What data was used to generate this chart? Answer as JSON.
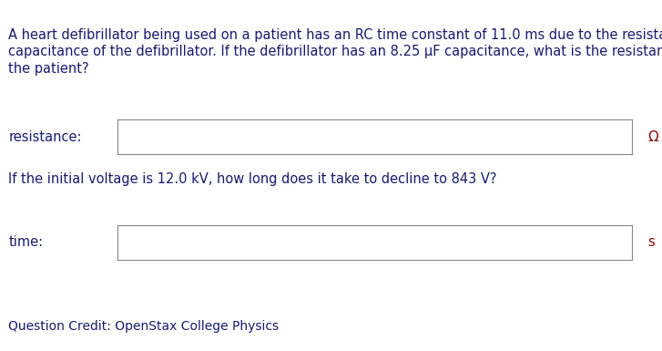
{
  "bg_color": "#ffffff",
  "text_color": "#1a1a6e",
  "unit_color": "#8b0000",
  "paragraph_line1": "A heart defibrillator being used on a patient has an RC time constant of 11.0 ms due to the resistance of the patient and the",
  "paragraph_line2": "capacitance of the defibrillator. If the defibrillator has an 8.25 μF capacitance, what is the resistance of the path through",
  "paragraph_line3": "the patient?",
  "label1": "resistance:",
  "unit1": "Ω",
  "question2": "If the initial voltage is 12.0 kV, how long does it take to decline to 843 V?",
  "label2": "time:",
  "unit2": "s",
  "credit": "Question Credit: OpenStax College Physics",
  "font_size_para": 10.5,
  "font_size_label": 10.5,
  "font_size_credit": 10.0
}
